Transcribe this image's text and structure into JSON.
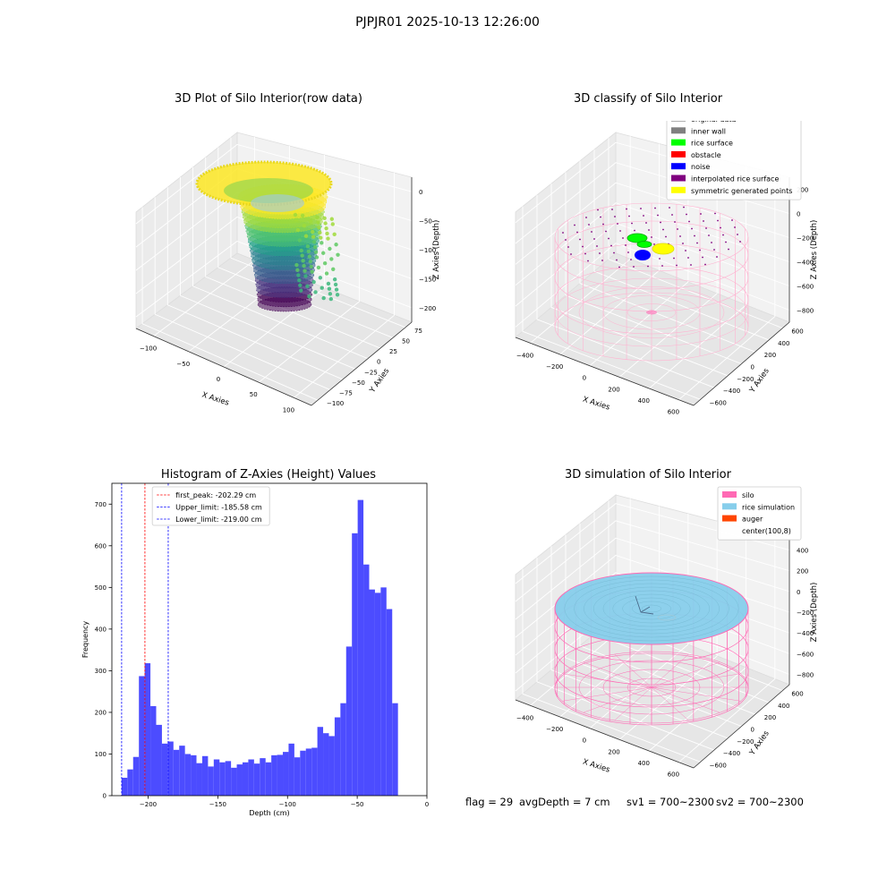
{
  "figure_title": "PJPJR01 2025-10-13 12:26:00",
  "footer": {
    "flag": "flag = 29",
    "avg_depth": "avgDepth = 7 cm",
    "sv1": "sv1 = 700~2300",
    "sv2": "sv2 = 700~2300"
  },
  "colors": {
    "histogram_bar": "#4c4cff",
    "first_peak_line": "#ff0000",
    "limit_lines": "#0000ff",
    "silo": "#ff69b4",
    "rice_simulation": "#87ceeb",
    "auger": "#ff4500",
    "original_data": "#b0b0b0",
    "inner_wall": "#808080",
    "rice_surface": "#00ff00",
    "obstacle": "#ff0000",
    "noise": "#0000ff",
    "interpolated_rice_surface": "#800080",
    "symmetric_generated_points": "#ffff00"
  },
  "chart_data": [
    {
      "type": "scatter",
      "subtype": "3d-scatter",
      "title": "3D Plot of Silo Interior(row data)",
      "xlabel": "X Axies",
      "ylabel": "Y Axies",
      "zlabel": "Z Axies (Depth)",
      "x_ticks": [
        "−100",
        "−50",
        "0",
        "50",
        "100"
      ],
      "y_ticks": [
        "75",
        "50",
        "25",
        "0",
        "−25",
        "−50",
        "−75",
        "−100"
      ],
      "z_ticks": [
        "0",
        "−50",
        "−100",
        "−150",
        "−200"
      ],
      "colormap": "viridis"
    },
    {
      "type": "scatter",
      "subtype": "3d-scatter",
      "title": "3D classify of Silo Interior",
      "xlabel": "X Axies",
      "ylabel": "Y Axies",
      "zlabel": "Z Axies (Depth)",
      "x_ticks": [
        "−400",
        "−200",
        "0",
        "200",
        "400",
        "600"
      ],
      "y_ticks": [
        "600",
        "400",
        "200",
        "0",
        "−200",
        "−400",
        "−600"
      ],
      "z_ticks": [
        "200",
        "0",
        "−200",
        "−400",
        "−600",
        "−800"
      ],
      "legend": [
        {
          "label": "original data",
          "color": "#b0b0b0"
        },
        {
          "label": "inner wall",
          "color": "#808080"
        },
        {
          "label": "rice surface",
          "color": "#00ff00"
        },
        {
          "label": "obstacle",
          "color": "#ff0000"
        },
        {
          "label": "noise",
          "color": "#0000ff"
        },
        {
          "label": "interpolated rice surface",
          "color": "#800080"
        },
        {
          "label": "symmetric generated points",
          "color": "#ffff00"
        }
      ],
      "legend_position": "top-right"
    },
    {
      "type": "bar",
      "subtype": "histogram",
      "title": "Histogram of Z-Axies (Height) Values",
      "xlabel": "Depth (cm)",
      "ylabel": "Frequency",
      "xlim": [
        -226,
        0
      ],
      "ylim": [
        0,
        750
      ],
      "x_ticks": [
        -200,
        -150,
        -100,
        -50,
        0
      ],
      "x_tick_labels": [
        "−200",
        "−150",
        "−100",
        "−50",
        "0"
      ],
      "y_ticks": [
        0,
        100,
        200,
        300,
        400,
        500,
        600,
        700
      ],
      "bin_start": -219,
      "bin_width": 4.13,
      "counts": [
        43,
        63,
        93,
        287,
        318,
        215,
        170,
        125,
        130,
        110,
        120,
        100,
        97,
        78,
        95,
        70,
        87,
        80,
        83,
        67,
        75,
        80,
        87,
        77,
        90,
        80,
        97,
        98,
        105,
        125,
        92,
        108,
        113,
        115,
        165,
        150,
        143,
        188,
        222,
        358,
        630,
        710,
        555,
        495,
        487,
        500,
        448,
        222
      ],
      "vlines": [
        {
          "label": "first_peak: -202.29 cm",
          "x": -202.29,
          "color": "#ff0000"
        },
        {
          "label": "Upper_limit: -185.58 cm",
          "x": -185.58,
          "color": "#0000ff"
        },
        {
          "label": "Lower_limit: -219.00 cm",
          "x": -219.0,
          "color": "#0000ff"
        }
      ],
      "legend_position": "top-center"
    },
    {
      "type": "scatter",
      "subtype": "3d-surface",
      "title": "3D simulation of Silo Interior",
      "xlabel": "X Axies",
      "ylabel": "Y Axies",
      "zlabel": "Z Axies (Depth)",
      "x_ticks": [
        "−400",
        "−200",
        "0",
        "200",
        "400",
        "600"
      ],
      "y_ticks": [
        "600",
        "400",
        "200",
        "0",
        "−200",
        "−400",
        "−600"
      ],
      "z_ticks": [
        "400",
        "200",
        "0",
        "−200",
        "−400",
        "−600",
        "−800"
      ],
      "legend": [
        {
          "label": "silo",
          "color": "#ff69b4"
        },
        {
          "label": "rice simulation",
          "color": "#87ceeb"
        },
        {
          "label": "auger",
          "color": "#ff4500"
        },
        {
          "label": "center(100,8)",
          "color": ""
        }
      ],
      "legend_position": "top-right"
    }
  ]
}
